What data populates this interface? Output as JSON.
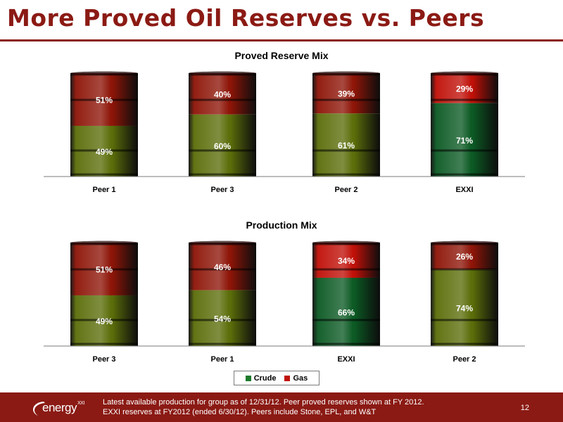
{
  "slide": {
    "title": "More Proved Oil Reserves vs. Peers",
    "footnote_line1": "Latest available production for group as of 12/31/12.  Peer proved reserves shown at FY 2012.",
    "footnote_line2": "EXXI reserves at FY2012  (ended 6/30/12).  Peers include Stone, EPL, and W&T",
    "page_number": "12",
    "logo_text": "energy",
    "logo_sup": "XXI"
  },
  "colors": {
    "crude": "#5b6e0a",
    "gas": "#8e1508",
    "exxi_crude": "#0c5a24",
    "exxi_gas": "#c01008",
    "accent": "#8b1a14"
  },
  "legend": {
    "items": [
      {
        "label": "Crude",
        "color": "#1a7a2a"
      },
      {
        "label": "Gas",
        "color": "#c01008"
      }
    ]
  },
  "chart_data": [
    {
      "type": "bar",
      "stacked": true,
      "percent": true,
      "title": "Proved Reserve Mix",
      "categories": [
        "Peer 1",
        "Peer 3",
        "Peer 2",
        "EXXI"
      ],
      "ylim": [
        0,
        100
      ],
      "series": [
        {
          "name": "Crude",
          "values": [
            49,
            60,
            61,
            71
          ]
        },
        {
          "name": "Gas",
          "values": [
            51,
            40,
            39,
            29
          ]
        }
      ],
      "highlight": "EXXI",
      "legend": "bottom"
    },
    {
      "type": "bar",
      "stacked": true,
      "percent": true,
      "title": "Production Mix",
      "categories": [
        "Peer 3",
        "Peer 1",
        "EXXI",
        "Peer 2"
      ],
      "ylim": [
        0,
        100
      ],
      "series": [
        {
          "name": "Crude",
          "values": [
            49,
            54,
            66,
            74
          ]
        },
        {
          "name": "Gas",
          "values": [
            51,
            46,
            34,
            26
          ]
        }
      ],
      "highlight": "EXXI",
      "legend": "bottom"
    }
  ]
}
